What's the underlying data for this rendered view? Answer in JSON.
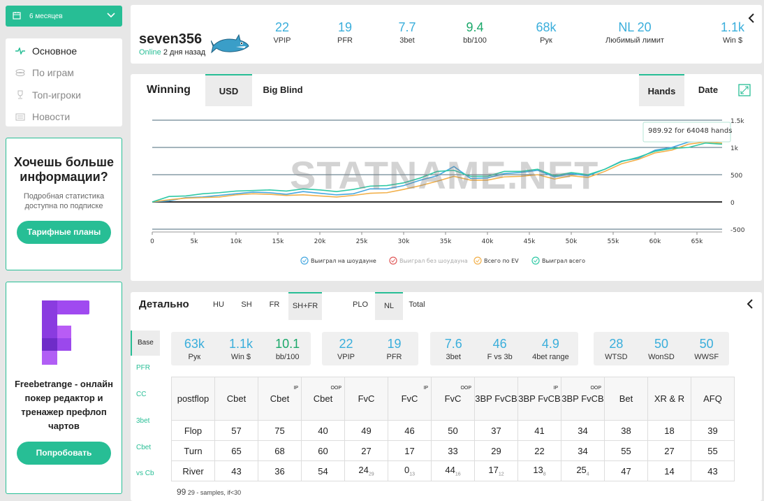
{
  "period": {
    "label": "6 месяцев"
  },
  "nav": [
    {
      "label": "Основное",
      "icon": "pulse-icon",
      "active": true
    },
    {
      "label": "По играм",
      "icon": "chips-icon",
      "active": false
    },
    {
      "label": "Топ-игроки",
      "icon": "trophy-icon",
      "active": false
    },
    {
      "label": "Новости",
      "icon": "news-icon",
      "active": false
    }
  ],
  "promo": {
    "title": "Хочешь больше информации?",
    "text": "Подробная статистика доступна по подписке",
    "button": "Тарифные планы"
  },
  "promo2": {
    "text": "Freebetrange - онлайн покер редактор и тренажер префлоп чартов",
    "button": "Попробовать"
  },
  "profile": {
    "username": "seven356",
    "status_online": "Online",
    "status_time": "2 дня назад",
    "stats": [
      {
        "value": "22",
        "label": "VPIP"
      },
      {
        "value": "19",
        "label": "PFR"
      },
      {
        "value": "7.7",
        "label": "3bet"
      },
      {
        "value": "9.4",
        "label": "bb/100"
      },
      {
        "value": "68k",
        "label": "Рук"
      },
      {
        "value": "NL 20",
        "label": "Любимый лимит"
      },
      {
        "value": "1.1k",
        "label": "Win $"
      }
    ]
  },
  "graph": {
    "title": "Winning",
    "tabs": [
      "USD",
      "Big Blind"
    ],
    "modes": [
      "Hands",
      "Date"
    ],
    "watermark": "STATNAME.NET",
    "tooltip": "989.92 for 64048 hands",
    "legend": [
      "Выиграл на шоудауне",
      "Выиграл без шоудауна",
      "Всего по EV",
      "Выиграл всего"
    ]
  },
  "chart_data": {
    "type": "line",
    "xlabel": "",
    "ylabel": "",
    "x_ticks": [
      "0",
      "5k",
      "10k",
      "15k",
      "20k",
      "25k",
      "30k",
      "35k",
      "40k",
      "45k",
      "50k",
      "55k",
      "60k",
      "65k"
    ],
    "y_ticks": [
      "1.5k",
      "1k",
      "500",
      "0",
      "-500"
    ],
    "xlim": [
      0,
      68000
    ],
    "ylim": [
      -500,
      1500
    ],
    "colors": {
      "showdown": "#45a7e0",
      "nonshowdown": "#e05a5a",
      "ev": "#f2b04a",
      "total": "#2fc9a5"
    },
    "series": [
      {
        "name": "Выиграл на шоудауне",
        "color": "#45a7e0",
        "x": [
          0,
          2000,
          4000,
          6000,
          8000,
          10000,
          12000,
          14000,
          16000,
          18000,
          20000,
          22000,
          24000,
          26000,
          28000,
          30000,
          32000,
          34000,
          36000,
          38000,
          40000,
          42000,
          44000,
          46000,
          48000,
          50000,
          52000,
          54000,
          56000,
          58000,
          60000,
          62000,
          64000,
          66000,
          68000
        ],
        "y": [
          0,
          20,
          80,
          90,
          120,
          150,
          180,
          170,
          140,
          190,
          160,
          130,
          150,
          240,
          240,
          300,
          400,
          480,
          650,
          430,
          440,
          520,
          540,
          580,
          460,
          520,
          480,
          600,
          750,
          800,
          950,
          1000,
          1100,
          1120,
          1110
        ]
      },
      {
        "name": "Всего по EV",
        "color": "#f2b04a",
        "x": [
          0,
          2000,
          4000,
          6000,
          8000,
          10000,
          12000,
          14000,
          16000,
          18000,
          20000,
          22000,
          24000,
          26000,
          28000,
          30000,
          32000,
          34000,
          36000,
          38000,
          40000,
          42000,
          44000,
          46000,
          48000,
          50000,
          52000,
          54000,
          56000,
          58000,
          60000,
          62000,
          64000,
          66000,
          68000
        ],
        "y": [
          0,
          40,
          70,
          80,
          90,
          130,
          150,
          140,
          120,
          130,
          110,
          90,
          120,
          160,
          170,
          230,
          300,
          380,
          470,
          400,
          400,
          460,
          470,
          500,
          420,
          480,
          450,
          560,
          700,
          780,
          900,
          950,
          1060,
          1100,
          1080
        ]
      },
      {
        "name": "Выиграл всего",
        "color": "#2fc9a5",
        "x": [
          0,
          2000,
          4000,
          6000,
          8000,
          10000,
          12000,
          14000,
          16000,
          18000,
          20000,
          22000,
          24000,
          26000,
          28000,
          30000,
          32000,
          34000,
          36000,
          38000,
          40000,
          42000,
          44000,
          46000,
          48000,
          50000,
          52000,
          54000,
          56000,
          58000,
          60000,
          62000,
          64000,
          66000,
          68000
        ],
        "y": [
          0,
          100,
          110,
          150,
          170,
          200,
          210,
          220,
          200,
          240,
          220,
          190,
          230,
          290,
          300,
          350,
          440,
          560,
          580,
          470,
          470,
          560,
          560,
          600,
          480,
          540,
          500,
          600,
          740,
          820,
          930,
          980,
          1000,
          1080,
          1060
        ]
      }
    ]
  },
  "detail": {
    "title": "Детально",
    "format_tabs": [
      "HU",
      "SH",
      "FR",
      "SH+FR"
    ],
    "game_tabs": [
      "PLO",
      "NL",
      "Total"
    ],
    "side_tabs": [
      "Base",
      "PFR",
      "CC",
      "3bet",
      "Cbet",
      "vs Cb"
    ],
    "stat_groups": [
      [
        {
          "value": "63k",
          "label": "Рук"
        },
        {
          "value": "1.1k",
          "label": "Win $"
        },
        {
          "value": "10.1",
          "label": "bb/100"
        }
      ],
      [
        {
          "value": "22",
          "label": "VPIP"
        },
        {
          "value": "19",
          "label": "PFR"
        }
      ],
      [
        {
          "value": "7.6",
          "label": "3bet"
        },
        {
          "value": "46",
          "label": "F vs 3b"
        },
        {
          "value": "4.9",
          "label": "4bet range"
        }
      ],
      [
        {
          "value": "28",
          "label": "WTSD"
        },
        {
          "value": "50",
          "label": "WonSD"
        },
        {
          "value": "50",
          "label": "WWSF"
        }
      ]
    ],
    "table": {
      "corner": "postflop",
      "headers": [
        {
          "label": "Cbet",
          "sup": ""
        },
        {
          "label": "Cbet",
          "sup": "IP"
        },
        {
          "label": "Cbet",
          "sup": "OOP"
        },
        {
          "label": "FvC",
          "sup": ""
        },
        {
          "label": "FvC",
          "sup": "IP"
        },
        {
          "label": "FvC",
          "sup": "OOP"
        },
        {
          "label": "3BP FvCB",
          "sup": ""
        },
        {
          "label": "3BP FvCB",
          "sup": "IP"
        },
        {
          "label": "3BP FvCB",
          "sup": "OOP"
        },
        {
          "label": "Bet",
          "sup": ""
        },
        {
          "label": "XR & R",
          "sup": ""
        },
        {
          "label": "AFQ",
          "sup": ""
        }
      ],
      "rows": [
        {
          "street": "Flop",
          "cells": [
            [
              "57",
              ""
            ],
            [
              "75",
              ""
            ],
            [
              "40",
              ""
            ],
            [
              "49",
              ""
            ],
            [
              "46",
              ""
            ],
            [
              "50",
              ""
            ],
            [
              "37",
              ""
            ],
            [
              "41",
              ""
            ],
            [
              "34",
              ""
            ],
            [
              "38",
              ""
            ],
            [
              "18",
              ""
            ],
            [
              "39",
              ""
            ]
          ]
        },
        {
          "street": "Turn",
          "cells": [
            [
              "65",
              ""
            ],
            [
              "68",
              ""
            ],
            [
              "60",
              ""
            ],
            [
              "27",
              ""
            ],
            [
              "17",
              ""
            ],
            [
              "33",
              ""
            ],
            [
              "29",
              ""
            ],
            [
              "22",
              ""
            ],
            [
              "34",
              ""
            ],
            [
              "55",
              ""
            ],
            [
              "27",
              ""
            ],
            [
              "55",
              ""
            ]
          ]
        },
        {
          "street": "River",
          "cells": [
            [
              "43",
              ""
            ],
            [
              "36",
              ""
            ],
            [
              "54",
              ""
            ],
            [
              "24",
              "29"
            ],
            [
              "0",
              "13"
            ],
            [
              "44",
              "16"
            ],
            [
              "17",
              "12"
            ],
            [
              "13",
              "8"
            ],
            [
              "25",
              "4"
            ],
            [
              "47",
              ""
            ],
            [
              "14",
              ""
            ],
            [
              "43",
              ""
            ]
          ]
        }
      ]
    },
    "note_value": "99",
    "note_sample": "29",
    "note_text": "- samples, if<30"
  }
}
